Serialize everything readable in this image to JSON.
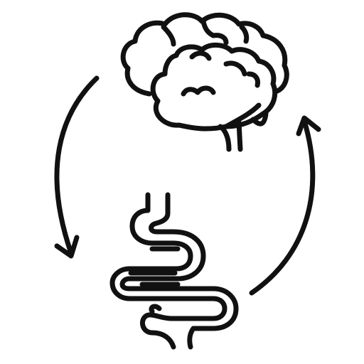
{
  "illustration": {
    "icons": [
      "brain-icon",
      "intestines-icon",
      "cycle-arrow-left-icon",
      "cycle-arrow-right-icon"
    ],
    "colors": {
      "background": "#ffffff",
      "line": "#111111"
    }
  }
}
